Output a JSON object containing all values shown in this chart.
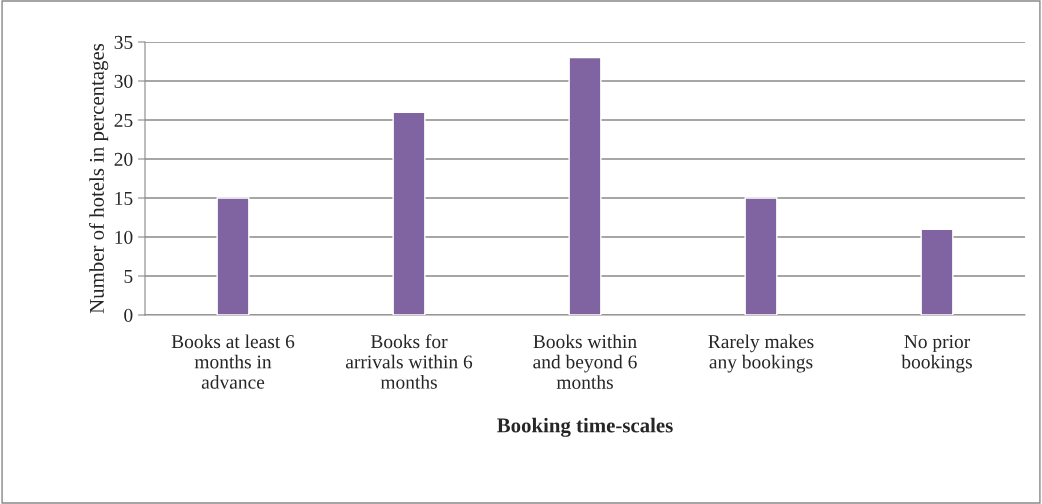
{
  "chart_data": {
    "type": "bar",
    "xlabel": "Booking time-scales",
    "ylabel": "Number of hotels in percentages",
    "categories": [
      "Books at least 6\nmonths in\nadvance",
      "Books for\narrivals within 6\nmonths",
      "Books within\nand beyond 6\nmonths",
      "Rarely makes\nany bookings",
      "No prior\nbookings"
    ],
    "values": [
      15,
      26,
      33,
      15,
      11
    ],
    "color": "#8064a2",
    "ylim": [
      0,
      35
    ],
    "yticks": [
      0,
      5,
      10,
      15,
      20,
      25,
      30,
      35
    ],
    "grid": "y",
    "legend": false
  }
}
